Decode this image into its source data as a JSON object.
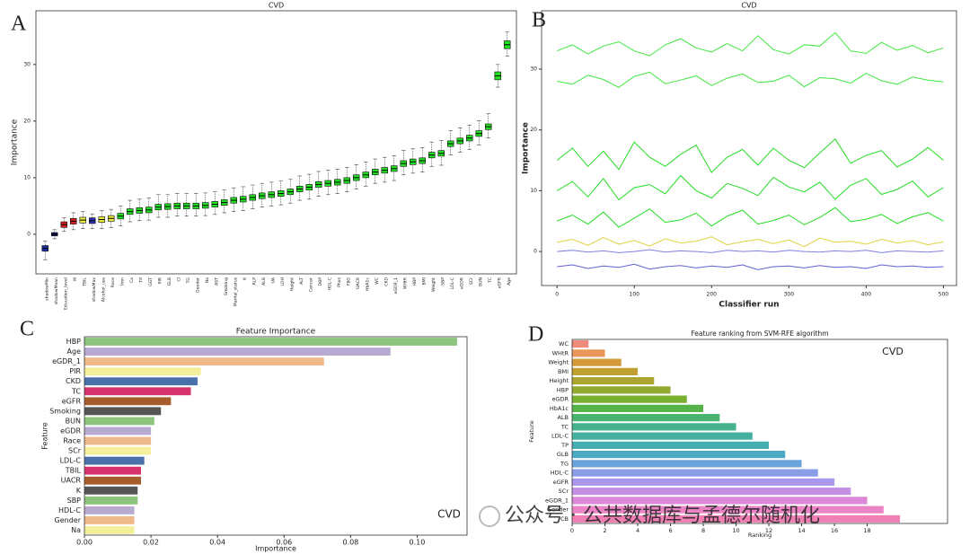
{
  "panel_labels": [
    "A",
    "B",
    "C",
    "D"
  ],
  "watermark": "公众号 · 公共数据库与孟德尔随机化",
  "chart_data": [
    {
      "type": "box",
      "title": "CVD",
      "y_label": "Importance",
      "categories": [
        "shadowMin",
        "shadowMean",
        "Education_level",
        "M",
        "TBIL",
        "shadowMax",
        "Alcohol_use",
        "Race",
        "Iron",
        "Ca",
        "TP",
        "GGT",
        "PIR",
        "GLB",
        "Cl",
        "TG",
        "Gender",
        "Na",
        "AST",
        "Smoking",
        "Marital_status",
        "K",
        "ALP",
        "ALB",
        "UA",
        "LDH",
        "Height",
        "ALT",
        "Cancer",
        "DBP",
        "HDL-C",
        "Phos",
        "FBG",
        "UACR",
        "HbA1c",
        "WC",
        "CKD",
        "eGDR_1",
        "WHtR",
        "HBP",
        "BMI",
        "Weight",
        "SBP",
        "LDL-C",
        "eGDR",
        "SCr",
        "BUN",
        "TC",
        "eGFR",
        "Age"
      ],
      "medians": [
        -2.5,
        0,
        1.7,
        2.3,
        2.5,
        2.4,
        2.6,
        2.8,
        3.2,
        4.0,
        4.2,
        4.3,
        4.8,
        4.9,
        5.0,
        5.0,
        5.0,
        5.1,
        5.3,
        5.6,
        6.0,
        6.2,
        6.5,
        6.8,
        7.0,
        7.2,
        7.5,
        8.0,
        8.3,
        8.8,
        9.0,
        9.2,
        9.5,
        10.0,
        10.5,
        11.0,
        11.3,
        11.6,
        12.5,
        12.8,
        13.0,
        14.0,
        14.3,
        16.0,
        16.5,
        17.0,
        17.8,
        19.0,
        28.0,
        33.5
      ],
      "q1": [
        -3,
        -0.3,
        1.2,
        1.8,
        2,
        1.9,
        2.1,
        2.3,
        2.7,
        3.5,
        3.7,
        3.8,
        4.3,
        4.4,
        4.5,
        4.5,
        4.5,
        4.6,
        4.8,
        5.1,
        5.5,
        5.7,
        6,
        6.3,
        6.5,
        6.7,
        7,
        7.5,
        7.8,
        8.3,
        8.5,
        8.7,
        9,
        9.5,
        10,
        10.5,
        10.8,
        11.1,
        12,
        12.3,
        12.5,
        13.5,
        13.8,
        15.5,
        16,
        16.5,
        17.3,
        18.5,
        27.3,
        32.8
      ],
      "q3": [
        -2,
        0.3,
        2.2,
        2.8,
        3,
        2.9,
        3.1,
        3.3,
        3.7,
        4.5,
        4.7,
        4.8,
        5.3,
        5.4,
        5.5,
        5.5,
        5.5,
        5.6,
        5.8,
        6.1,
        6.5,
        6.7,
        7,
        7.3,
        7.5,
        7.7,
        8,
        8.5,
        8.8,
        9.3,
        9.5,
        9.7,
        10,
        10.5,
        11,
        11.5,
        11.8,
        12.1,
        13,
        13.3,
        13.5,
        14.5,
        14.8,
        16.5,
        17,
        17.5,
        18.3,
        19.5,
        28.7,
        34.2
      ],
      "whisker_low": [
        -4.5,
        -0.8,
        0.5,
        0.8,
        1,
        1,
        1,
        1.2,
        1.5,
        2.2,
        2.4,
        2.5,
        3,
        3,
        3.2,
        3.2,
        3.2,
        3.3,
        3.5,
        3.8,
        4,
        4.2,
        4.5,
        4.8,
        5,
        5.2,
        5.5,
        6,
        6.2,
        6.7,
        7,
        7.2,
        7.5,
        8,
        8.5,
        9,
        9.2,
        9.5,
        10.5,
        10.8,
        11,
        12,
        12.2,
        14,
        14.5,
        15,
        15.8,
        17,
        26,
        31.5
      ],
      "whisker_high": [
        -1.2,
        0.8,
        2.9,
        3.8,
        4,
        3.6,
        4.2,
        4.4,
        5,
        6,
        6.2,
        6.4,
        7,
        7,
        7.2,
        7.2,
        7.2,
        7.3,
        7.5,
        7.8,
        8.2,
        8.4,
        8.7,
        9,
        9.2,
        9.4,
        9.7,
        10.3,
        10.6,
        11.1,
        11.3,
        11.5,
        11.8,
        12.3,
        12.8,
        13.3,
        13.6,
        13.9,
        14.8,
        15.1,
        15.3,
        16.3,
        16.6,
        18.3,
        18.8,
        19.3,
        20.1,
        21.3,
        30,
        35.8
      ],
      "colors": [
        "#1f2fa8",
        "#1a1a60",
        "#d62020",
        "#d62020",
        "#ecec40",
        "#2b2bb0",
        "#ecec40",
        "#ecec40",
        "#22e022",
        "#22e022",
        "#22e022",
        "#22e022",
        "#22e022",
        "#22e022",
        "#22e022",
        "#22e022",
        "#22e022",
        "#22e022",
        "#22e022",
        "#22e022",
        "#22e022",
        "#22e022",
        "#22e022",
        "#22e022",
        "#22e022",
        "#22e022",
        "#22e022",
        "#22e022",
        "#22e022",
        "#22e022",
        "#22e022",
        "#22e022",
        "#22e022",
        "#22e022",
        "#22e022",
        "#22e022",
        "#22e022",
        "#22e022",
        "#22e022",
        "#22e022",
        "#22e022",
        "#22e022",
        "#22e022",
        "#22e022",
        "#22e022",
        "#22e022",
        "#22e022",
        "#22e022",
        "#22e022",
        "#22e022"
      ],
      "ylim": [
        -7,
        39.5
      ],
      "yticks": [
        0,
        10,
        20,
        30
      ]
    },
    {
      "type": "line",
      "title": "CVD",
      "x_label": "Classifier run",
      "y_label": "Importance",
      "x": [
        0,
        20,
        40,
        60,
        80,
        100,
        120,
        140,
        160,
        180,
        200,
        220,
        240,
        260,
        280,
        300,
        320,
        340,
        360,
        380,
        400,
        420,
        440,
        460,
        480,
        500
      ],
      "series": [
        {
          "color": "#3ee83e",
          "values": [
            33,
            34,
            32.5,
            33.8,
            34.5,
            33,
            32.2,
            34,
            35,
            33.5,
            32.8,
            34.2,
            33,
            35.5,
            33.2,
            32.5,
            34,
            33.8,
            36,
            33,
            32.6,
            34.4,
            33.1,
            33.9,
            32.7,
            33.5
          ]
        },
        {
          "color": "#3ee83e",
          "values": [
            28,
            27.5,
            29,
            28.3,
            27,
            28.8,
            29.5,
            27.6,
            28.2,
            28.9,
            27.3,
            28.5,
            29.2,
            27.8,
            28,
            29,
            27.1,
            28.6,
            28.4,
            27.7,
            29.3,
            28.1,
            27.5,
            28.7,
            28.2,
            27.9
          ]
        },
        {
          "color": "#22dd22",
          "values": [
            15,
            17,
            14,
            16.5,
            13.5,
            18,
            15.5,
            14,
            16,
            17.5,
            13,
            15.5,
            16.8,
            14.2,
            17,
            15,
            13.8,
            16.2,
            18.5,
            14.5,
            15.8,
            16.6,
            13.9,
            15.2,
            17.1,
            15
          ]
        },
        {
          "color": "#22dd22",
          "values": [
            10,
            11.5,
            9,
            12,
            8.5,
            10.5,
            11,
            9.5,
            12.5,
            10,
            8.8,
            11.2,
            10.4,
            9.2,
            12.2,
            10.6,
            9.8,
            11.4,
            8.6,
            10.9,
            12,
            9.4,
            10.2,
            11.6,
            9,
            10.5
          ]
        },
        {
          "color": "#22dd22",
          "values": [
            5,
            6,
            4.5,
            6.5,
            4,
            5.5,
            7,
            4.8,
            5.2,
            6.3,
            4.2,
            5.8,
            6.8,
            4.5,
            5.1,
            6,
            4.4,
            5.6,
            7.2,
            4.9,
            5.3,
            6.1,
            4.6,
            5.7,
            6.4,
            5
          ]
        },
        {
          "color": "#e0d040",
          "values": [
            1.5,
            2,
            1,
            2.3,
            1.2,
            1.8,
            0.9,
            2.1,
            1.4,
            1.7,
            2.4,
            1.1,
            1.6,
            2,
            1.3,
            1.9,
            0.8,
            2.2,
            1.5,
            1.7,
            1.2,
            2,
            1.4,
            1.8,
            1.1,
            1.6
          ]
        },
        {
          "color": "#8080e0",
          "values": [
            0,
            0.2,
            -0.1,
            0.1,
            -0.2,
            0,
            0.3,
            -0.1,
            0.1,
            0,
            -0.2,
            0.2,
            0,
            0.1,
            -0.1,
            0.2,
            0,
            -0.1,
            0.1,
            0,
            0.2,
            -0.2,
            0.1,
            0,
            -0.1,
            0.1
          ]
        },
        {
          "color": "#6060d0",
          "values": [
            -2.5,
            -2.2,
            -2.8,
            -2.4,
            -2.6,
            -2.1,
            -2.9,
            -2.5,
            -2.3,
            -2.7,
            -2.4,
            -2.6,
            -2.2,
            -3,
            -2.5,
            -2.4,
            -2.7,
            -2.3,
            -2.6,
            -2.5,
            -2.8,
            -2.2,
            -2.5,
            -2.4,
            -2.6,
            -2.5
          ]
        }
      ],
      "xlim": [
        -20,
        517
      ],
      "xticks": [
        0,
        100,
        200,
        300,
        400,
        500
      ],
      "ylim": [
        -5.6,
        39.6
      ],
      "yticks": [
        0,
        10,
        20,
        30
      ]
    },
    {
      "type": "hbar",
      "title": "Feature Importance",
      "x_label": "Importance",
      "y_label": "Feature",
      "annotation": "CVD",
      "categories": [
        "HBP",
        "Age",
        "eGDR_1",
        "PIR",
        "CKD",
        "TC",
        "eGFR",
        "Smoking",
        "BUN",
        "eGDR",
        "Race",
        "SCr",
        "LDL-C",
        "TBIL",
        "UACR",
        "K",
        "SBP",
        "HDL-C",
        "Gender",
        "Na"
      ],
      "values": [
        0.112,
        0.092,
        0.072,
        0.035,
        0.034,
        0.032,
        0.026,
        0.023,
        0.021,
        0.02,
        0.02,
        0.02,
        0.018,
        0.017,
        0.017,
        0.016,
        0.016,
        0.015,
        0.015,
        0.015
      ],
      "colors": [
        "#8dc47c",
        "#b7a9cf",
        "#f0b98a",
        "#f4ef9b",
        "#4a70aa",
        "#d6336c",
        "#a65d2b",
        "#555555",
        "#8dc47c",
        "#b7a9cf",
        "#f0b98a",
        "#f4ef9b",
        "#4a70aa",
        "#d6336c",
        "#a65d2b",
        "#555555",
        "#8dc47c",
        "#b7a9cf",
        "#f0b98a",
        "#f4ef9b"
      ],
      "xlim": [
        0,
        0.115
      ],
      "xticks": [
        {
          "value": 0,
          "label": "0.00"
        },
        {
          "value": 0.02,
          "label": "0.02"
        },
        {
          "value": 0.04,
          "label": "0.04"
        },
        {
          "value": 0.06,
          "label": "0.06"
        },
        {
          "value": 0.08,
          "label": "0.08"
        },
        {
          "value": 0.1,
          "label": "0.10"
        }
      ]
    },
    {
      "type": "hbar",
      "title": "Feature ranking from SVM-RFE algorithm",
      "x_label": "Ranking",
      "y_label": "Feature",
      "annotation": "CVD",
      "categories": [
        "WC",
        "WHtR",
        "Weight",
        "BMI",
        "Height",
        "HBP",
        "eGDR",
        "HbA1c",
        "ALB",
        "TC",
        "LDL-C",
        "TP",
        "GLB",
        "TG",
        "HDL-C",
        "eGFR",
        "SCr",
        "eGDR_1",
        "Gender",
        "CB"
      ],
      "values": [
        1,
        2,
        3,
        4,
        5,
        6,
        7,
        8,
        9,
        10,
        11,
        12,
        13,
        14,
        15,
        16,
        17,
        18,
        19,
        20
      ],
      "colors": [
        "#f08a7a",
        "#e8955a",
        "#d49a3a",
        "#c0a030",
        "#aaa530",
        "#93aa30",
        "#78b030",
        "#55b448",
        "#48b470",
        "#45b28c",
        "#44b0a0",
        "#45aeb0",
        "#4aaac4",
        "#6aa4dc",
        "#8a9ee8",
        "#a898ec",
        "#c490e6",
        "#dc88d6",
        "#ea84c4",
        "#f080b4"
      ],
      "xlim": [
        0,
        22.9
      ],
      "xticks": [
        0,
        2,
        4,
        6,
        8,
        10,
        12,
        14,
        16,
        18
      ]
    }
  ]
}
